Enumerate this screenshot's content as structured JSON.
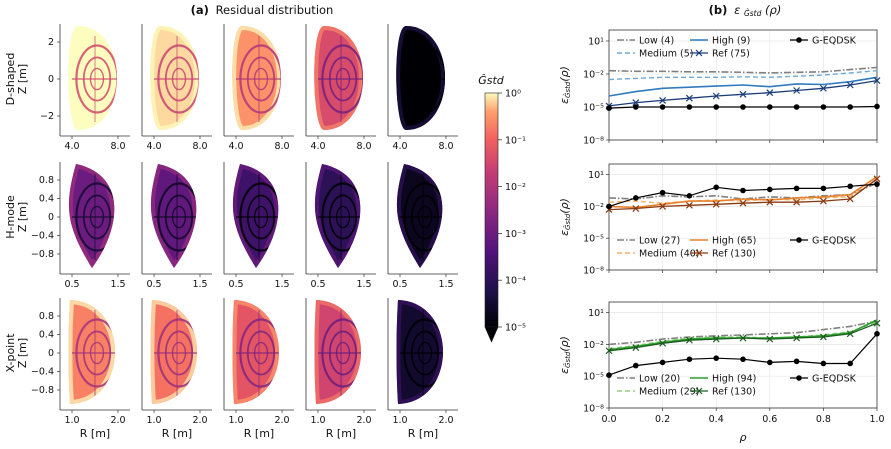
{
  "figure": {
    "panel_a": {
      "title_prefix": "(a)",
      "title_text": "Residual distribution",
      "rows": [
        {
          "ylabel_top": "D-shaped",
          "ylabel_bottom": "Z [m]",
          "yticks": [
            "2",
            "0",
            "−2"
          ],
          "xticks": [
            "4.0",
            "8.0"
          ],
          "xlabel": "",
          "residual_levels": [
            1.0,
            0.7,
            0.3,
            0.04,
            1e-05
          ]
        },
        {
          "ylabel_top": "H-mode",
          "ylabel_bottom": "Z [m]",
          "yticks": [
            "0.8",
            "0.4",
            "0",
            "−0.4",
            "−0.8"
          ],
          "xticks": [
            "0.5",
            "1.5"
          ],
          "xlabel": "",
          "residual_levels": [
            0.001,
            0.0007,
            0.0002,
            0.0001,
            2e-05
          ]
        },
        {
          "ylabel_top": "X-point",
          "ylabel_bottom": "Z [m]",
          "yticks": [
            "0.8",
            "0.4",
            "0",
            "−0.4",
            "−0.8"
          ],
          "xticks": [
            "1.0",
            "2.0"
          ],
          "xlabel": "R [m]",
          "residual_levels": [
            0.2,
            0.15,
            0.06,
            0.03,
            3e-05
          ]
        }
      ],
      "colorbar": {
        "label": "Ĝstd",
        "ticks": [
          "10⁰",
          "10⁻¹",
          "10⁻²",
          "10⁻³",
          "10⁻⁴",
          "10⁻⁵"
        ],
        "scale": "log",
        "range": [
          1e-05,
          1
        ]
      }
    },
    "panel_b": {
      "title_prefix": "(b)",
      "title_text": "ε",
      "title_suffix": "(ρ)",
      "xlabel": "ρ",
      "ylabel": "ε",
      "ylabel_suffix": "(ρ)",
      "x_ticks": [
        "0.0",
        "0.2",
        "0.4",
        "0.6",
        "0.8",
        "1.0"
      ],
      "y_ticks": [
        "10¹",
        "10⁻²",
        "10⁻⁵",
        "10⁻⁸"
      ]
    }
  },
  "chart_data": [
    {
      "type": "line",
      "xlabel": "ρ",
      "ylabel": "ε(ρ)",
      "xlim": [
        0,
        1
      ],
      "ylim_log10": [
        -8,
        2
      ],
      "y_scale": "log",
      "legend_position": "top",
      "x": [
        0.0,
        0.1,
        0.2,
        0.3,
        0.4,
        0.5,
        0.6,
        0.7,
        0.8,
        0.9,
        1.0
      ],
      "series": [
        {
          "name": "Low (4)",
          "color": "#808080",
          "dash": "7,2,1.5,2",
          "width": 1.6,
          "marker": "none",
          "log10_y": [
            -1.7,
            -1.75,
            -1.75,
            -1.8,
            -1.8,
            -1.85,
            -1.9,
            -1.85,
            -1.8,
            -1.6,
            -1.4
          ]
        },
        {
          "name": "Medium (5)",
          "color": "#6fa8d6",
          "dash": "5,3",
          "width": 1.4,
          "marker": "none",
          "log10_y": [
            -2.5,
            -2.4,
            -2.3,
            -2.3,
            -2.3,
            -2.25,
            -2.3,
            -2.2,
            -2.1,
            -1.9,
            -1.7
          ]
        },
        {
          "name": "High (9)",
          "color": "#2f7bbd",
          "dash": "none",
          "width": 1.6,
          "marker": "none",
          "log10_y": [
            -4.0,
            -3.6,
            -3.3,
            -3.2,
            -3.1,
            -3.0,
            -3.15,
            -2.9,
            -2.95,
            -2.7,
            -2.3
          ]
        },
        {
          "name": "Ref (75)",
          "color": "#1a3d7a",
          "dash": "none",
          "width": 1.3,
          "marker": "x",
          "log10_y": [
            -4.9,
            -4.6,
            -4.4,
            -4.2,
            -4.0,
            -3.85,
            -3.7,
            -3.5,
            -3.3,
            -3.0,
            -2.6
          ]
        },
        {
          "name": "G-EQDSK",
          "color": "#000000",
          "dash": "none",
          "width": 1.2,
          "marker": "dot",
          "log10_y": [
            -5.1,
            -5.0,
            -5.0,
            -5.0,
            -5.0,
            -5.0,
            -5.0,
            -5.0,
            -5.0,
            -5.0,
            -4.95
          ]
        }
      ]
    },
    {
      "type": "line",
      "xlabel": "ρ",
      "ylabel": "ε(ρ)",
      "xlim": [
        0,
        1
      ],
      "ylim_log10": [
        -8,
        2
      ],
      "y_scale": "log",
      "legend_position": "bottom",
      "x": [
        0.0,
        0.1,
        0.2,
        0.3,
        0.4,
        0.5,
        0.6,
        0.7,
        0.8,
        0.9,
        1.0
      ],
      "series": [
        {
          "name": "Low (27)",
          "color": "#808080",
          "dash": "7,2,1.5,2",
          "width": 1.6,
          "marker": "none",
          "log10_y": [
            -1.2,
            -1.3,
            -1.0,
            -1.1,
            -1.0,
            -1.3,
            -1.1,
            -1.2,
            -1.0,
            -0.9,
            0.2
          ]
        },
        {
          "name": "Medium (40)",
          "color": "#f5b26b",
          "dash": "5,3",
          "width": 1.4,
          "marker": "none",
          "log10_y": [
            -1.6,
            -1.5,
            -1.7,
            -1.5,
            -1.4,
            -1.5,
            -1.3,
            -1.4,
            -1.2,
            -1.1,
            0.5
          ]
        },
        {
          "name": "High (65)",
          "color": "#e8802a",
          "dash": "none",
          "width": 1.6,
          "marker": "none",
          "log10_y": [
            -2.0,
            -2.1,
            -1.8,
            -1.5,
            -1.5,
            -1.3,
            -1.4,
            -1.2,
            -1.1,
            -0.9,
            0.8
          ]
        },
        {
          "name": "Ref (130)",
          "color": "#8a3a10",
          "dash": "none",
          "width": 1.3,
          "marker": "x",
          "log10_y": [
            -2.3,
            -2.2,
            -2.0,
            -1.9,
            -1.8,
            -1.7,
            -1.6,
            -1.6,
            -1.5,
            -1.3,
            0.6
          ]
        },
        {
          "name": "G-EQDSK",
          "color": "#000000",
          "dash": "none",
          "width": 1.2,
          "marker": "dot",
          "log10_y": [
            -2.0,
            -1.2,
            -0.7,
            -1.0,
            -0.2,
            -0.5,
            -0.4,
            -0.3,
            -0.3,
            -0.1,
            0.1
          ]
        }
      ]
    },
    {
      "type": "line",
      "xlabel": "ρ",
      "ylabel": "ε(ρ)",
      "xlim": [
        0,
        1
      ],
      "ylim_log10": [
        -8,
        2
      ],
      "y_scale": "log",
      "legend_position": "bottom",
      "x": [
        0.0,
        0.1,
        0.2,
        0.3,
        0.4,
        0.5,
        0.6,
        0.7,
        0.8,
        0.9,
        1.0
      ],
      "series": [
        {
          "name": "Low (20)",
          "color": "#808080",
          "dash": "7,2,1.5,2",
          "width": 1.6,
          "marker": "none",
          "log10_y": [
            -2.0,
            -1.8,
            -1.5,
            -1.3,
            -1.2,
            -1.1,
            -1.0,
            -0.9,
            -0.6,
            -0.3,
            0.2
          ]
        },
        {
          "name": "Medium (29)",
          "color": "#8fd17f",
          "dash": "5,3",
          "width": 1.4,
          "marker": "none",
          "log10_y": [
            -2.4,
            -2.1,
            -1.7,
            -1.4,
            -1.3,
            -1.3,
            -1.4,
            -1.3,
            -1.1,
            -0.8,
            0.1
          ]
        },
        {
          "name": "High (94)",
          "color": "#2ca02c",
          "dash": "none",
          "width": 1.6,
          "marker": "none",
          "log10_y": [
            -2.5,
            -2.2,
            -1.8,
            -1.5,
            -1.4,
            -1.4,
            -1.4,
            -1.3,
            -1.2,
            -0.9,
            0.3
          ]
        },
        {
          "name": "Ref (130)",
          "color": "#1b5e20",
          "dash": "none",
          "width": 1.3,
          "marker": "x",
          "log10_y": [
            -2.6,
            -2.3,
            -1.9,
            -1.6,
            -1.5,
            -1.4,
            -1.5,
            -1.4,
            -1.3,
            -1.0,
            0.0
          ]
        },
        {
          "name": "G-EQDSK",
          "color": "#000000",
          "dash": "none",
          "width": 1.2,
          "marker": "dot",
          "log10_y": [
            -4.9,
            -4.0,
            -3.7,
            -3.4,
            -3.3,
            -3.4,
            -3.7,
            -3.6,
            -3.8,
            -3.8,
            -1.0
          ]
        }
      ]
    }
  ]
}
